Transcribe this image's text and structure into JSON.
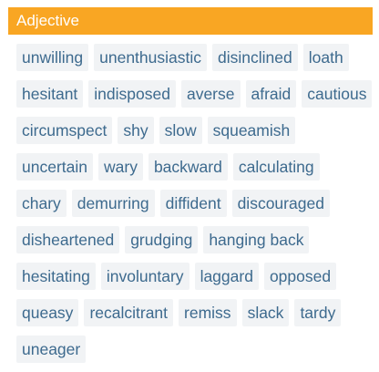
{
  "section": {
    "title": "Adjective",
    "words": [
      "unwilling",
      "unenthusiastic",
      "disinclined",
      "loath",
      "hesitant",
      "indisposed",
      "averse",
      "afraid",
      "cautious",
      "circumspect",
      "shy",
      "slow",
      "squeamish",
      "uncertain",
      "wary",
      "backward",
      "calculating",
      "chary",
      "demurring",
      "diffident",
      "discouraged",
      "disheartened",
      "grudging",
      "hanging back",
      "hesitating",
      "involuntary",
      "laggard",
      "opposed",
      "queasy",
      "recalcitrant",
      "remiss",
      "slack",
      "tardy",
      "uneager"
    ]
  },
  "colors": {
    "header_bg": "#f9a623",
    "chip_bg": "#f1f3f5",
    "chip_text": "#3d6a8e"
  }
}
